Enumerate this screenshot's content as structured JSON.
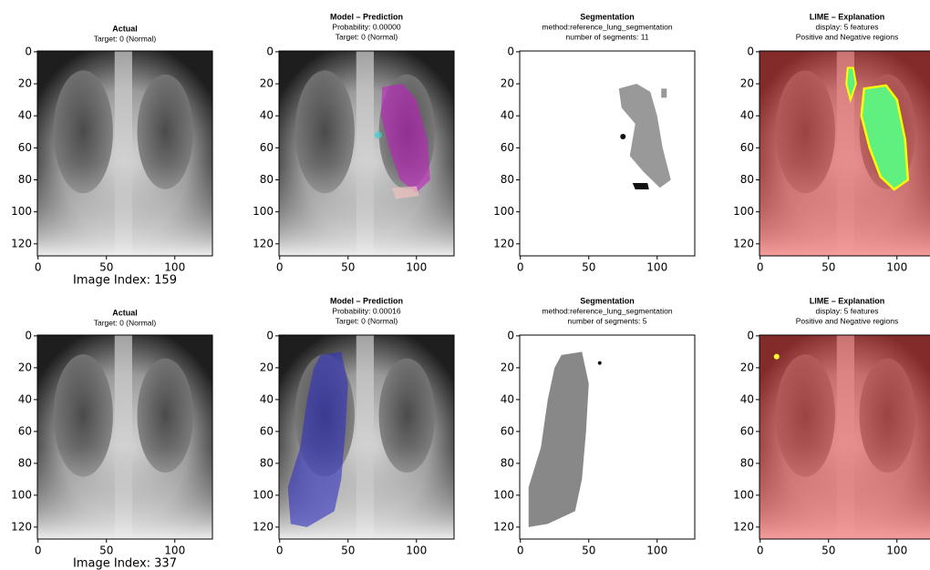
{
  "chart_data": [
    {
      "type": "image",
      "title": "Actual",
      "subtitle": [
        "Target: 0 (Normal)"
      ],
      "annotation": "Image Index: 159",
      "xlim": [
        -0.5,
        127.5
      ],
      "ylim": [
        127.5,
        -0.5
      ],
      "xticks": [
        0,
        50,
        100
      ],
      "yticks": [
        0,
        20,
        40,
        60,
        80,
        100,
        120
      ]
    },
    {
      "type": "image",
      "title": "Model – Prediction",
      "subtitle": [
        "Probability: 0.00000",
        "Target: 0 (Normal)"
      ],
      "xlim": [
        -0.5,
        127.5
      ],
      "ylim": [
        127.5,
        -0.5
      ],
      "xticks": [
        0,
        50,
        100
      ],
      "yticks": [
        0,
        20,
        40,
        60,
        80,
        100,
        120
      ]
    },
    {
      "type": "image",
      "title": "Segmentation",
      "subtitle": [
        "method:reference_lung_segmentation",
        "number of segments: 11"
      ],
      "xlim": [
        -0.5,
        127.5
      ],
      "ylim": [
        127.5,
        -0.5
      ],
      "xticks": [
        0,
        50,
        100
      ],
      "yticks": [
        0,
        20,
        40,
        60,
        80,
        100,
        120
      ]
    },
    {
      "type": "image",
      "title": "LIME – Explanation",
      "subtitle": [
        "display: 5 features",
        "Positive and Negative regions"
      ],
      "xlim": [
        -0.5,
        127.5
      ],
      "ylim": [
        127.5,
        -0.5
      ],
      "xticks": [
        0,
        50,
        100
      ],
      "yticks": [
        0,
        20,
        40,
        60,
        80,
        100,
        120
      ]
    },
    {
      "type": "image",
      "title": "Actual",
      "subtitle": [
        "Target: 0 (Normal)"
      ],
      "annotation": "Image Index: 337",
      "xlim": [
        -0.5,
        127.5
      ],
      "ylim": [
        127.5,
        -0.5
      ],
      "xticks": [
        0,
        50,
        100
      ],
      "yticks": [
        0,
        20,
        40,
        60,
        80,
        100,
        120
      ]
    },
    {
      "type": "image",
      "title": "Model – Prediction",
      "subtitle": [
        "Probability: 0.00016",
        "Target: 0 (Normal)"
      ],
      "xlim": [
        -0.5,
        127.5
      ],
      "ylim": [
        127.5,
        -0.5
      ],
      "xticks": [
        0,
        50,
        100
      ],
      "yticks": [
        0,
        20,
        40,
        60,
        80,
        100,
        120
      ]
    },
    {
      "type": "image",
      "title": "Segmentation",
      "subtitle": [
        "method:reference_lung_segmentation",
        "number of segments: 5"
      ],
      "xlim": [
        -0.5,
        127.5
      ],
      "ylim": [
        127.5,
        -0.5
      ],
      "xticks": [
        0,
        50,
        100
      ],
      "yticks": [
        0,
        20,
        40,
        60,
        80,
        100,
        120
      ]
    },
    {
      "type": "image",
      "title": "LIME – Explanation",
      "subtitle": [
        "display: 5 features",
        "Positive and Negative regions"
      ],
      "xlim": [
        -0.5,
        127.5
      ],
      "ylim": [
        127.5,
        -0.5
      ],
      "xticks": [
        0,
        50,
        100
      ],
      "yticks": [
        0,
        20,
        40,
        60,
        80,
        100,
        120
      ]
    }
  ]
}
